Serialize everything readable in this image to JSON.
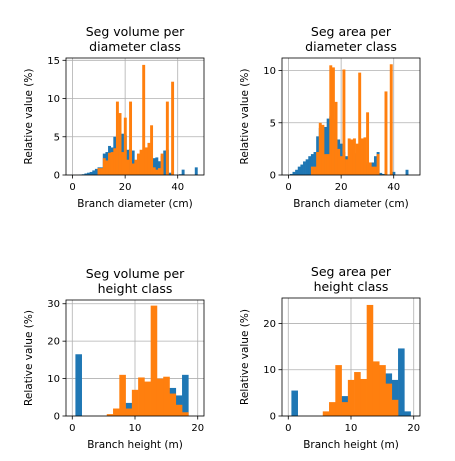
{
  "colors": {
    "series1": "#1f77b4",
    "series2": "#ff7f0e",
    "grid": "#b0b0b0"
  },
  "chart_data": [
    {
      "type": "bar",
      "title": [
        "Seg volume per",
        "diameter class"
      ],
      "xlabel": "Branch diameter (cm)",
      "ylabel": "Relative value (%)",
      "xlim": [
        -2.5,
        50
      ],
      "ylim": [
        0,
        15.3
      ],
      "xticks": [
        0,
        20,
        40
      ],
      "yticks": [
        0,
        5,
        10,
        15
      ],
      "grid": true,
      "bin_width": 1,
      "series": [
        {
          "color_key": "series1",
          "x": [
            3,
            4,
            5,
            6,
            7,
            8,
            9,
            10,
            11,
            12,
            13,
            14,
            15,
            16,
            17,
            18,
            19,
            20,
            21,
            22,
            23,
            24,
            25,
            26,
            27,
            28,
            29,
            30,
            31,
            32,
            33,
            34,
            35,
            36,
            37,
            38,
            39,
            40,
            41,
            42,
            43,
            44,
            45,
            46,
            47
          ],
          "values": [
            0.05,
            0.1,
            0.2,
            0.3,
            0.4,
            0.6,
            0.8,
            1.0,
            1.0,
            2.8,
            3.0,
            3.8,
            3.6,
            5.0,
            5.3,
            5.0,
            5.4,
            5.2,
            3.3,
            3.4,
            3.2,
            1.8,
            2.6,
            2.5,
            3.1,
            3.6,
            3.2,
            2.0,
            2.2,
            2.3,
            1.8,
            2.5,
            3.2,
            3.3,
            0.3,
            0.1,
            0.0,
            0.0,
            0.1,
            0.7,
            0.0,
            0.0,
            0.0,
            0.0,
            1.0
          ]
        },
        {
          "color_key": "series2",
          "x": [
            10,
            11,
            12,
            13,
            14,
            15,
            16,
            17,
            18,
            19,
            20,
            21,
            22,
            23,
            24,
            25,
            26,
            27,
            28,
            29,
            30,
            31,
            32,
            33,
            34,
            35,
            36,
            37,
            38,
            39,
            40
          ],
          "values": [
            0.9,
            0.9,
            2.2,
            1.9,
            2.9,
            3.0,
            3.5,
            9.6,
            8.1,
            3.0,
            7.5,
            2.0,
            9.6,
            1.5,
            2.0,
            2.8,
            3.3,
            14.4,
            3.6,
            4.2,
            6.5,
            1.0,
            0.7,
            0.9,
            2.8,
            0.0,
            9.6,
            0.0,
            12.2,
            0.0,
            0.0
          ]
        }
      ]
    },
    {
      "type": "bar",
      "title": [
        "Seg area per",
        "diameter class"
      ],
      "xlabel": "Branch diameter (cm)",
      "ylabel": "Relative value (%)",
      "xlim": [
        -2.5,
        50
      ],
      "ylim": [
        0,
        11.2
      ],
      "xticks": [
        0,
        20,
        40
      ],
      "yticks": [
        0,
        5,
        10
      ],
      "grid": true,
      "bin_width": 1,
      "series": [
        {
          "color_key": "series1",
          "x": [
            1,
            2,
            3,
            4,
            5,
            6,
            7,
            8,
            9,
            10,
            11,
            12,
            13,
            14,
            15,
            16,
            17,
            18,
            19,
            20,
            21,
            22,
            23,
            24,
            25,
            26,
            27,
            28,
            29,
            30,
            31,
            32,
            33,
            34,
            35,
            36,
            37,
            38,
            39,
            40,
            41,
            42,
            43,
            44,
            45,
            46,
            47
          ],
          "values": [
            0.1,
            0.3,
            0.5,
            0.8,
            1.0,
            1.3,
            1.5,
            1.8,
            2.0,
            2.2,
            3.7,
            4.5,
            4.6,
            4.6,
            5.4,
            5.6,
            5.3,
            4.0,
            3.4,
            3.0,
            2.2,
            1.8,
            1.8,
            2.8,
            2.1,
            2.0,
            1.5,
            1.5,
            1.2,
            1.0,
            0.8,
            1.2,
            1.8,
            2.2,
            0.2,
            0.1,
            0.05,
            0.0,
            0.05,
            0.3,
            0.0,
            0.0,
            0.0,
            0.0,
            0.5,
            0.0,
            0.0
          ]
        },
        {
          "color_key": "series2",
          "x": [
            9,
            10,
            11,
            12,
            13,
            14,
            15,
            16,
            17,
            18,
            19,
            20,
            21,
            22,
            23,
            24,
            25,
            26,
            27,
            28,
            29,
            30,
            31,
            32,
            33,
            34,
            35,
            36,
            37,
            38,
            39,
            40
          ],
          "values": [
            0.8,
            0.8,
            2.2,
            5.0,
            4.8,
            2.0,
            2.0,
            10.5,
            10.3,
            7.0,
            2.5,
            1.8,
            10.1,
            1.5,
            3.5,
            3.4,
            3.5,
            3.0,
            9.8,
            3.5,
            3.6,
            6.0,
            1.2,
            0.8,
            0.8,
            2.0,
            0.0,
            0.0,
            8.0,
            0.0,
            10.6,
            0.0
          ]
        }
      ]
    },
    {
      "type": "bar",
      "title": [
        "Seg volume per",
        "height class"
      ],
      "xlabel": "Branch height (m)",
      "ylabel": "Relative value (%)",
      "xlim": [
        -1,
        21
      ],
      "ylim": [
        0,
        31
      ],
      "xticks": [
        0,
        10,
        20
      ],
      "yticks": [
        0,
        10,
        20,
        30
      ],
      "grid": true,
      "bin_width": 1,
      "series": [
        {
          "color_key": "series1",
          "x": [
            1,
            2,
            3,
            4,
            5,
            6,
            7,
            8,
            9,
            10,
            11,
            12,
            13,
            14,
            15,
            16,
            17,
            18,
            19
          ],
          "values": [
            16.5,
            0,
            0,
            0,
            0,
            0,
            0,
            0,
            3.5,
            0.5,
            0,
            0,
            0,
            0,
            0,
            7.5,
            5.5,
            11.0,
            0
          ]
        },
        {
          "color_key": "series2",
          "x": [
            6,
            7,
            8,
            9,
            10,
            11,
            12,
            13,
            14,
            15,
            16,
            17,
            18
          ],
          "values": [
            0.5,
            2.0,
            11.0,
            2.0,
            7.0,
            10.3,
            9.2,
            29.5,
            10.0,
            10.5,
            6.0,
            3.0,
            1.0
          ]
        }
      ]
    },
    {
      "type": "bar",
      "title": [
        "Seg area per",
        "height class"
      ],
      "xlabel": "Branch height (m)",
      "ylabel": "Relative value (%)",
      "xlim": [
        -1,
        21
      ],
      "ylim": [
        0,
        25.5
      ],
      "xticks": [
        0,
        10,
        20
      ],
      "yticks": [
        0,
        10,
        20
      ],
      "grid": true,
      "bin_width": 1,
      "series": [
        {
          "color_key": "series1",
          "x": [
            1,
            2,
            3,
            4,
            5,
            6,
            7,
            8,
            9,
            10,
            11,
            12,
            13,
            14,
            15,
            16,
            17,
            18,
            19
          ],
          "values": [
            5.5,
            0,
            0,
            0,
            0,
            0,
            0,
            0,
            4.3,
            1.0,
            0,
            0,
            0,
            0,
            0,
            9.2,
            7.8,
            14.6,
            1.0
          ]
        },
        {
          "color_key": "series2",
          "x": [
            6,
            7,
            8,
            9,
            10,
            11,
            12,
            13,
            14,
            15,
            16,
            17,
            18
          ],
          "values": [
            1.0,
            3.0,
            11.0,
            3.0,
            7.8,
            9.5,
            8.0,
            24.0,
            11.8,
            11.0,
            7.0,
            3.5,
            0.0
          ]
        }
      ]
    }
  ]
}
